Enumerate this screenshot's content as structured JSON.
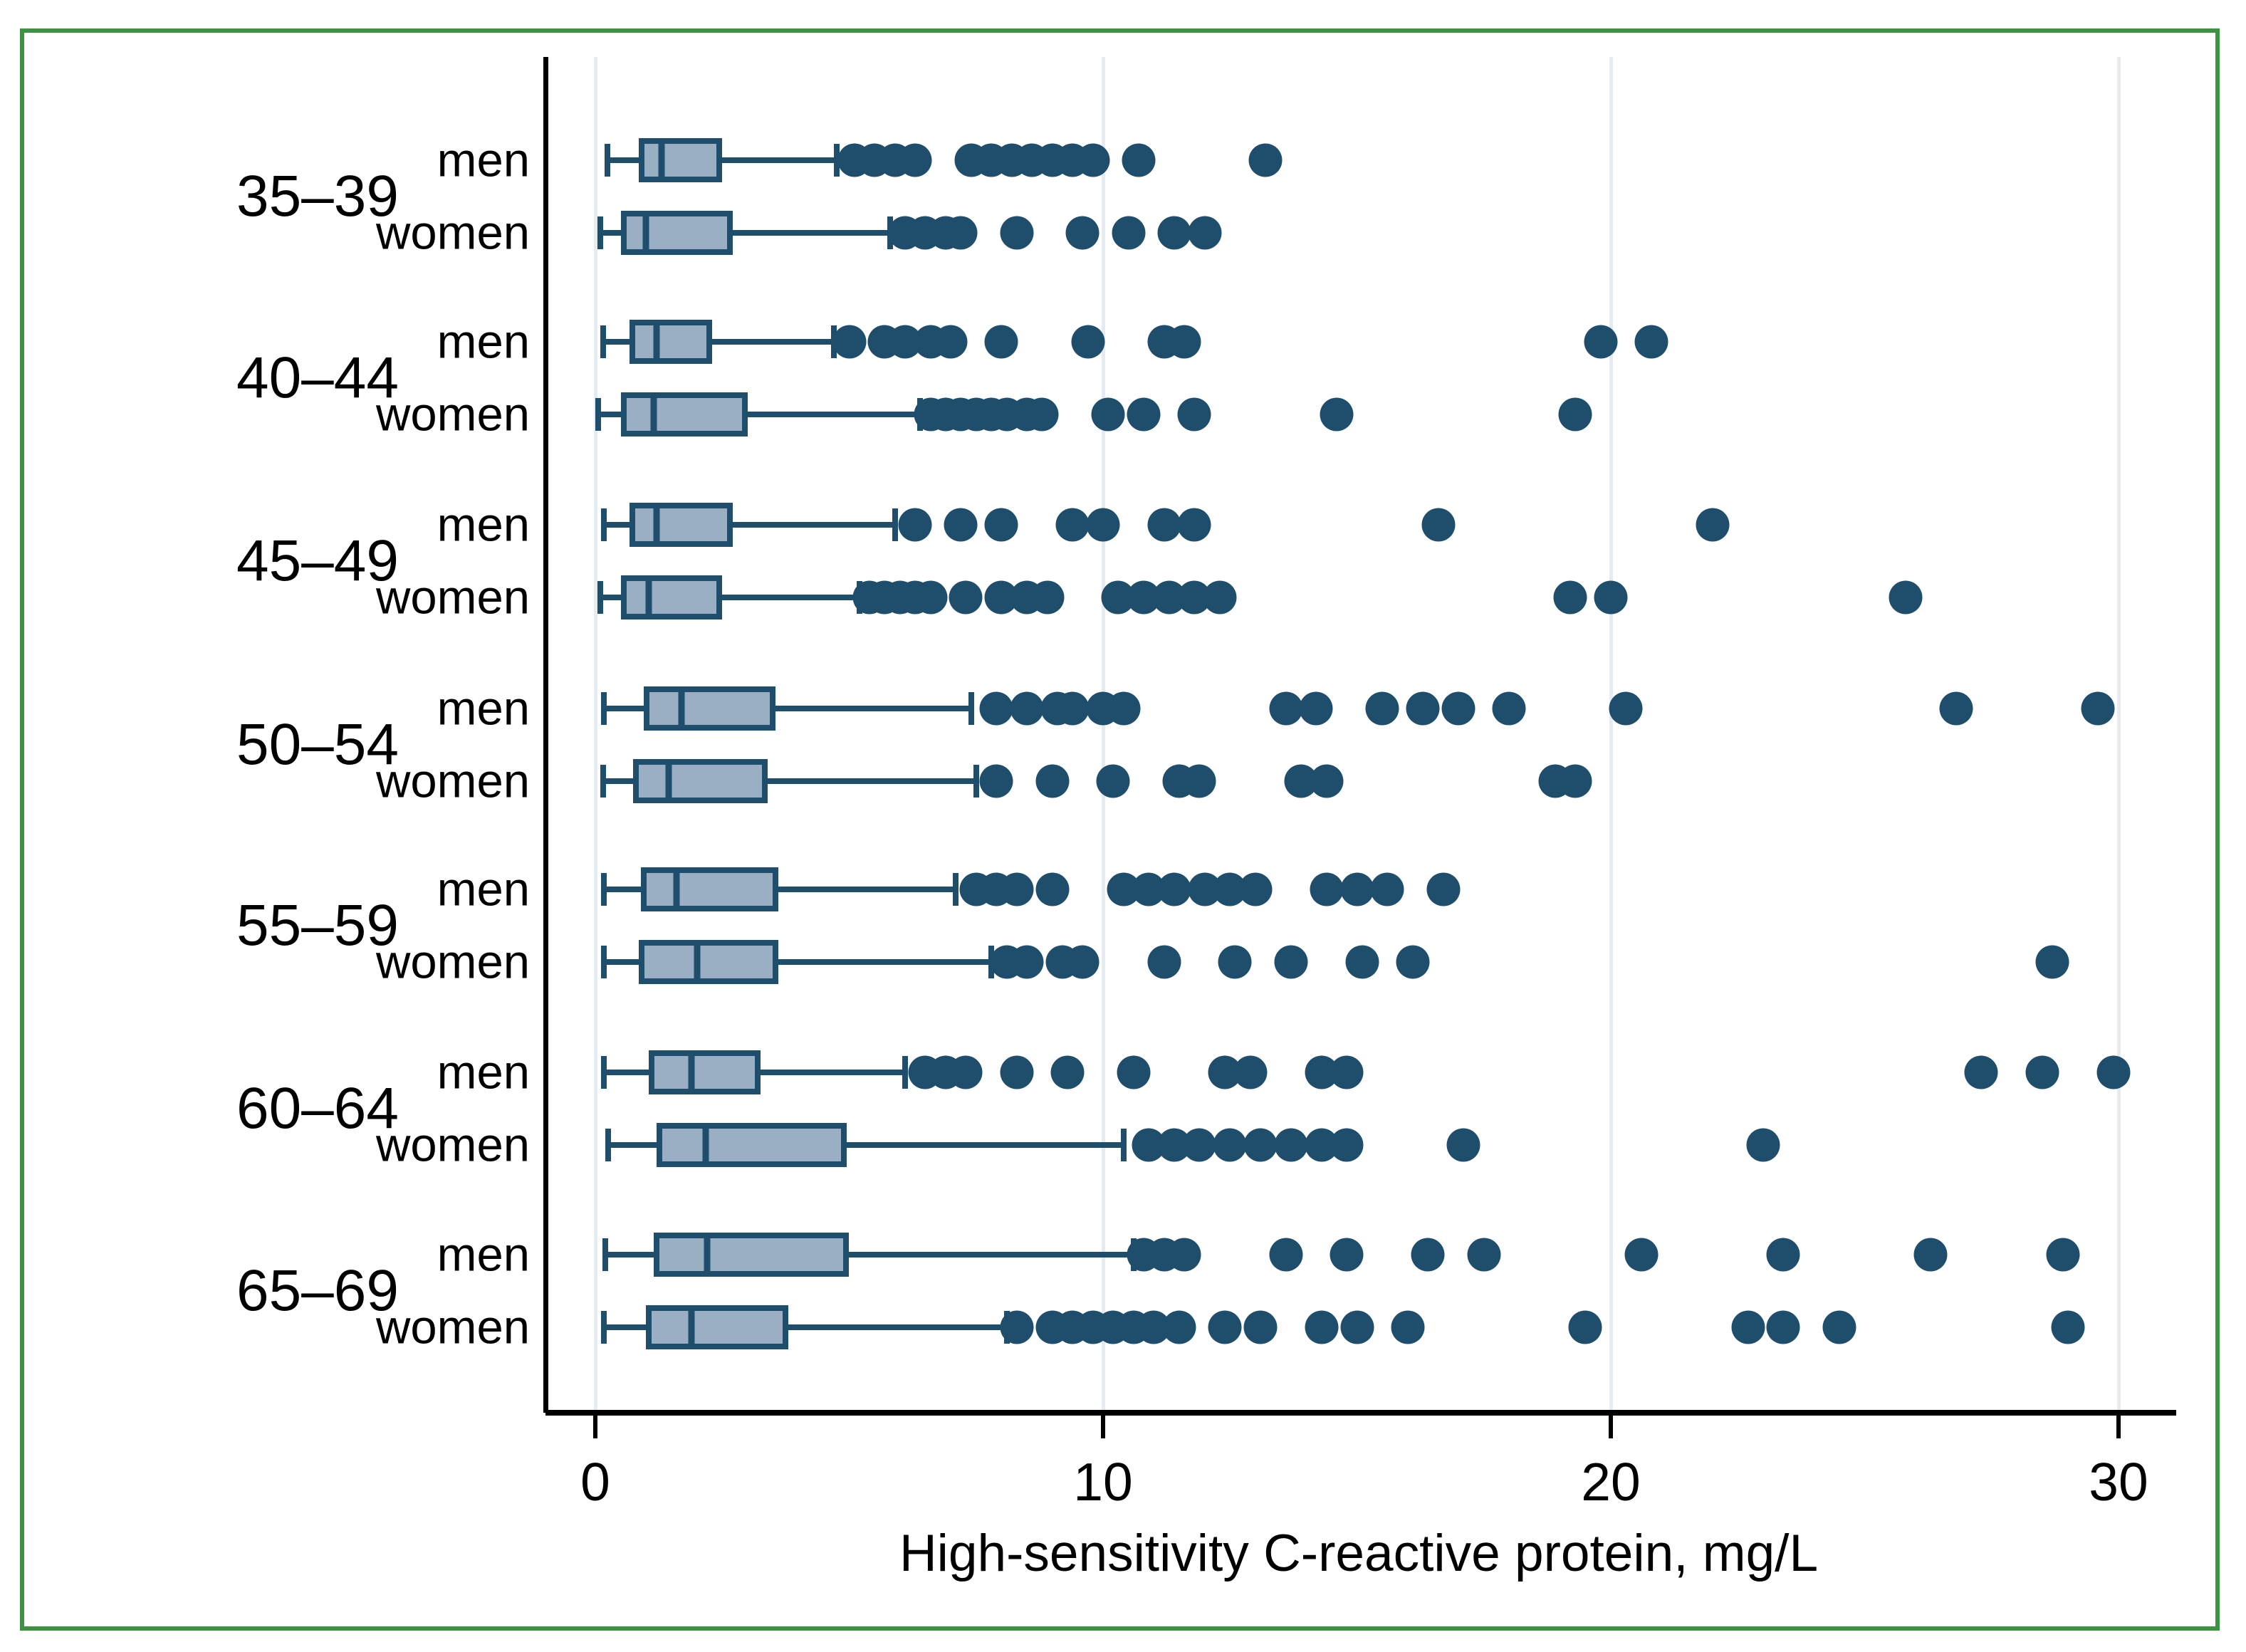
{
  "figure": {
    "background": "#ffffff",
    "frame_border_color": "#3f9143"
  },
  "chart_data": {
    "type": "boxplot",
    "orientation": "horizontal",
    "title": "",
    "xlabel": "High-sensitivity C-reactive protein, mg/L",
    "ylabel": "",
    "x_ticks": [
      0,
      10,
      20,
      30
    ],
    "xlim": [
      0,
      30
    ],
    "grid": "vertical gridlines at x ticks, light blue-gray",
    "legend": "none",
    "row_labels": [
      "men",
      "women"
    ],
    "colors": {
      "box_fill": "#9aafc4",
      "box_and_dot_line": "#1f4e6d",
      "gridline": "#e4ecf2",
      "frame": "#3f9143",
      "text": "#000000"
    },
    "groups": [
      {
        "age": "35–39",
        "men": {
          "min": 0.24,
          "q1": 0.85,
          "median": 1.3,
          "q3": 2.5,
          "whisker_high": 4.75,
          "outliers": [
            5.1,
            5.5,
            5.9,
            6.3,
            7.4,
            7.8,
            8.2,
            8.6,
            9.0,
            9.4,
            9.8,
            10.7,
            13.2
          ]
        },
        "women": {
          "min": 0.1,
          "q1": 0.5,
          "median": 1.0,
          "q3": 2.7,
          "whisker_high": 5.8,
          "outliers": [
            6.1,
            6.5,
            6.9,
            7.2,
            8.3,
            9.6,
            10.5,
            11.4,
            12.0
          ]
        }
      },
      {
        "age": "40–44",
        "men": {
          "min": 0.15,
          "q1": 0.67,
          "median": 1.2,
          "q3": 2.3,
          "whisker_high": 4.7,
          "outliers": [
            5.0,
            5.7,
            6.1,
            6.6,
            7.0,
            8.0,
            9.7,
            11.2,
            11.6,
            19.8,
            20.8
          ]
        },
        "women": {
          "min": 0.05,
          "q1": 0.5,
          "median": 1.15,
          "q3": 3.0,
          "whisker_high": 6.4,
          "outliers": [
            6.6,
            6.9,
            7.2,
            7.5,
            7.8,
            8.1,
            8.5,
            8.8,
            10.1,
            10.8,
            11.8,
            14.6,
            19.3
          ]
        }
      },
      {
        "age": "45–49",
        "men": {
          "min": 0.17,
          "q1": 0.67,
          "median": 1.2,
          "q3": 2.7,
          "whisker_high": 5.9,
          "outliers": [
            6.3,
            7.2,
            8.0,
            9.4,
            10.0,
            11.2,
            11.8,
            16.6,
            22.0
          ]
        },
        "women": {
          "min": 0.1,
          "q1": 0.5,
          "median": 1.05,
          "q3": 2.5,
          "whisker_high": 5.2,
          "outliers": [
            5.4,
            5.7,
            6.0,
            6.3,
            6.6,
            7.3,
            8.0,
            8.5,
            8.9,
            10.3,
            10.8,
            11.3,
            11.8,
            12.3,
            19.2,
            20.0,
            25.8
          ]
        }
      },
      {
        "age": "50–54",
        "men": {
          "min": 0.17,
          "q1": 0.95,
          "median": 1.7,
          "q3": 3.55,
          "whisker_high": 7.4,
          "outliers": [
            7.9,
            8.5,
            9.1,
            9.4,
            10.0,
            10.4,
            13.6,
            14.2,
            15.5,
            16.3,
            17.0,
            18.0,
            20.3,
            26.8,
            29.6
          ]
        },
        "women": {
          "min": 0.15,
          "q1": 0.75,
          "median": 1.45,
          "q3": 3.4,
          "whisker_high": 7.5,
          "outliers": [
            7.9,
            9.0,
            10.2,
            11.5,
            11.9,
            13.9,
            14.4,
            18.9,
            19.3
          ]
        }
      },
      {
        "age": "55–59",
        "men": {
          "min": 0.17,
          "q1": 0.9,
          "median": 1.6,
          "q3": 3.6,
          "whisker_high": 7.1,
          "outliers": [
            7.5,
            7.9,
            8.3,
            9.0,
            10.4,
            10.9,
            11.4,
            12.0,
            12.5,
            13.0,
            14.4,
            15.0,
            15.6,
            16.7
          ]
        },
        "women": {
          "min": 0.17,
          "q1": 0.85,
          "median": 2.0,
          "q3": 3.6,
          "whisker_high": 7.8,
          "outliers": [
            8.1,
            8.5,
            9.2,
            9.6,
            11.2,
            12.6,
            13.7,
            15.1,
            16.1,
            28.7
          ]
        }
      },
      {
        "age": "60–64",
        "men": {
          "min": 0.17,
          "q1": 1.05,
          "median": 1.9,
          "q3": 3.25,
          "whisker_high": 6.1,
          "outliers": [
            6.5,
            6.9,
            7.3,
            8.3,
            9.3,
            10.6,
            12.4,
            12.9,
            14.3,
            14.8,
            27.3,
            28.5,
            29.9
          ]
        },
        "women": {
          "min": 0.25,
          "q1": 1.2,
          "median": 2.18,
          "q3": 4.95,
          "whisker_high": 10.4,
          "outliers": [
            10.9,
            11.4,
            11.9,
            12.5,
            13.1,
            13.7,
            14.3,
            14.8,
            17.1,
            23.0
          ]
        }
      },
      {
        "age": "65–69",
        "men": {
          "min": 0.2,
          "q1": 1.15,
          "median": 2.2,
          "q3": 5.0,
          "whisker_high": 10.6,
          "outliers": [
            10.8,
            11.2,
            11.6,
            13.6,
            14.8,
            16.4,
            17.5,
            20.6,
            23.4,
            26.3,
            28.9
          ]
        },
        "women": {
          "min": 0.17,
          "q1": 1.0,
          "median": 1.9,
          "q3": 3.8,
          "whisker_high": 8.1,
          "outliers": [
            8.3,
            9.0,
            9.4,
            9.8,
            10.2,
            10.6,
            11.0,
            11.5,
            12.4,
            13.1,
            14.3,
            15.0,
            16.0,
            19.5,
            22.7,
            23.4,
            24.5,
            29.0
          ]
        }
      }
    ]
  }
}
